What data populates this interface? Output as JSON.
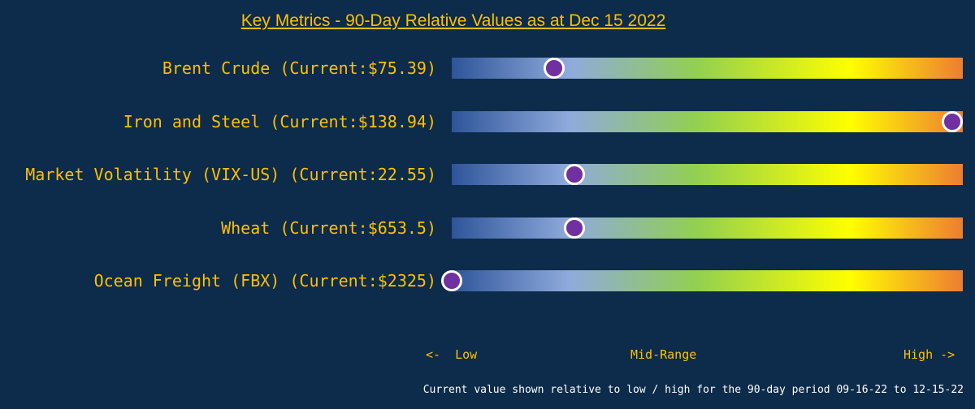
{
  "chart_data": {
    "type": "bullet-range",
    "title": "Key Metrics - 90-Day Relative Values as at Dec 15 2022",
    "rows": [
      {
        "label": "Brent Crude (Current:$75.39)",
        "relative_position": 0.2
      },
      {
        "label": "Iron and Steel (Current:$138.94)",
        "relative_position": 0.98
      },
      {
        "label": "Market Volatility (VIX-US) (Current:22.55)",
        "relative_position": 0.24
      },
      {
        "label": "Wheat (Current:$653.5)",
        "relative_position": 0.24
      },
      {
        "label": "Ocean Freight (FBX) (Current:$2325)",
        "relative_position": 0.0
      }
    ],
    "scale_labels": {
      "low": "<-  Low",
      "mid": "Mid-Range",
      "high": "High ->"
    },
    "footnote": "Current value shown relative to low / high for the 90-day period 09-16-22 to 12-15-22",
    "colors": {
      "background": "#0d2b4a",
      "text": "#ffc000",
      "marker": "#7030a0",
      "gradient": [
        "#2e5599",
        "#8faadc",
        "#92d050",
        "#ffff00",
        "#ed7d31"
      ]
    }
  }
}
